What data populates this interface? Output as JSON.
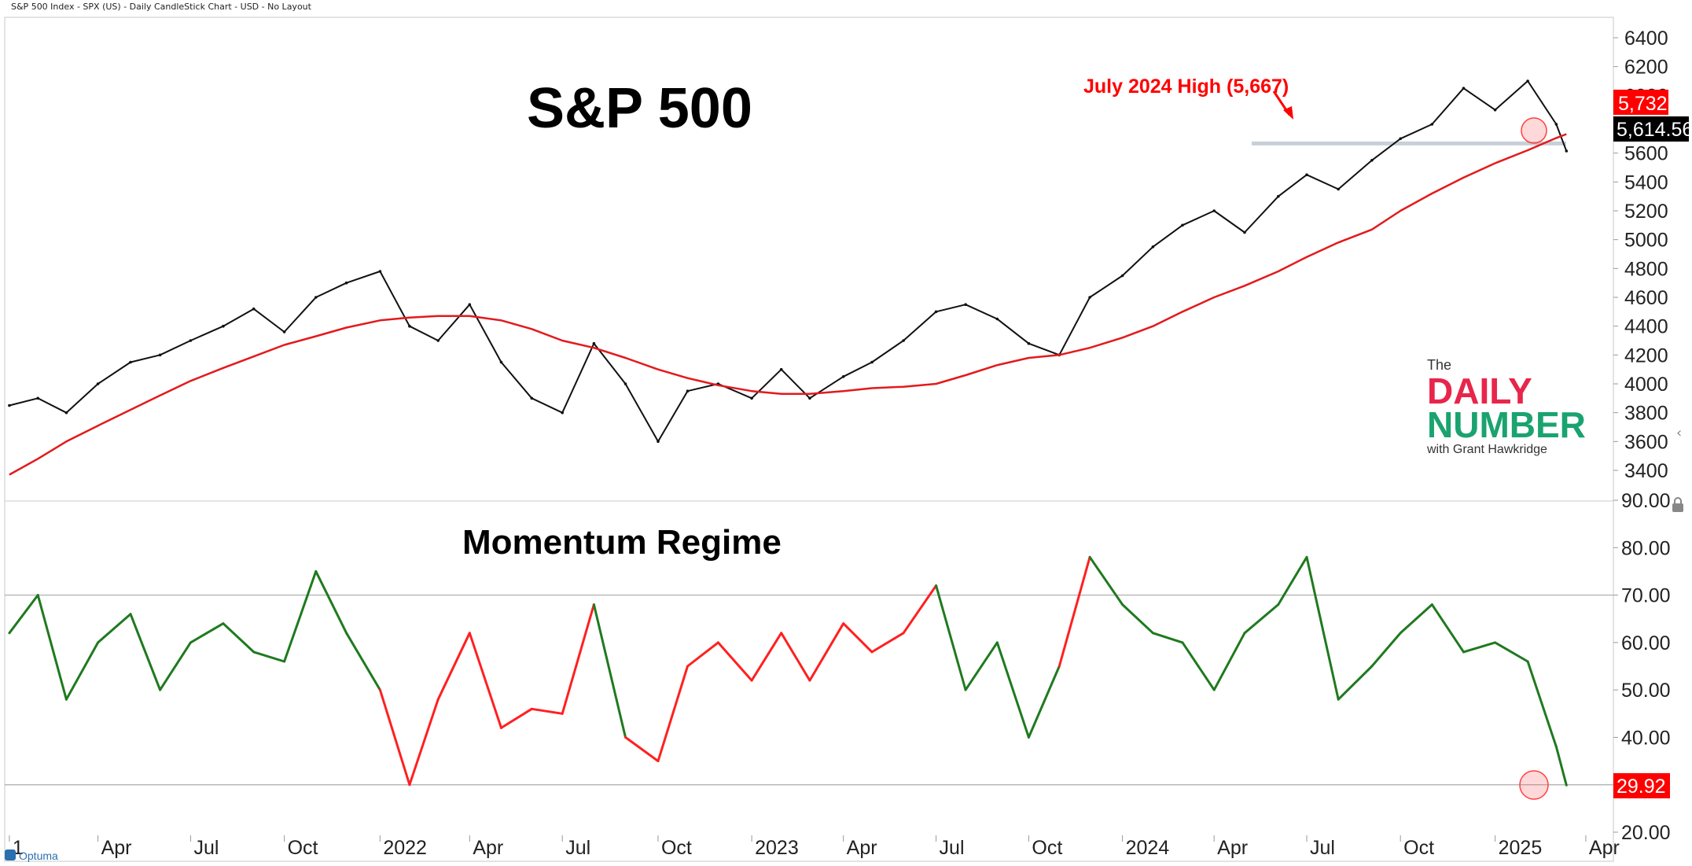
{
  "header": {
    "text": "S&P 500 Index - SPX (US) - Daily CandleStick Chart - USD - No Layout"
  },
  "watermark": {
    "the": "The",
    "daily": "DAILY",
    "number": "NUMBER",
    "with": "with Grant Hawkridge",
    "optuma": "Optuma"
  },
  "colors": {
    "price": "#111111",
    "ma": "#e31a1c",
    "momentum_up": "#1f7a1f",
    "momentum_down": "#ff2020",
    "annotation": "#ff0000",
    "brand_red": "#e8254a",
    "brand_green": "#1aa36f"
  },
  "chart_data": [
    {
      "type": "line",
      "title": "S&P 500",
      "xlabel": "",
      "ylabel": "",
      "ylim": [
        3300,
        6500
      ],
      "yticks": [
        3400,
        3600,
        3800,
        4000,
        4200,
        4400,
        4600,
        4800,
        5000,
        5200,
        5400,
        5600,
        5800,
        6000,
        6200,
        6400
      ],
      "x_tick_labels": [
        "1",
        "Apr",
        "Jul",
        "Oct",
        "2022",
        "Apr",
        "Jul",
        "Oct",
        "2023",
        "Apr",
        "Jul",
        "Oct",
        "2024",
        "Apr",
        "Jul",
        "Oct",
        "2025",
        "Apr"
      ],
      "x": [
        "2021-01-04",
        "2021-02-01",
        "2021-03-01",
        "2021-04-01",
        "2021-05-03",
        "2021-06-01",
        "2021-07-01",
        "2021-08-02",
        "2021-09-01",
        "2021-10-01",
        "2021-11-01",
        "2021-12-01",
        "2022-01-03",
        "2022-02-01",
        "2022-03-01",
        "2022-04-01",
        "2022-05-02",
        "2022-06-01",
        "2022-07-01",
        "2022-08-01",
        "2022-09-01",
        "2022-10-03",
        "2022-11-01",
        "2022-12-01",
        "2023-01-03",
        "2023-02-01",
        "2023-03-01",
        "2023-04-03",
        "2023-05-01",
        "2023-06-01",
        "2023-07-03",
        "2023-08-01",
        "2023-09-01",
        "2023-10-02",
        "2023-11-01",
        "2023-12-01",
        "2024-01-02",
        "2024-02-01",
        "2024-03-01",
        "2024-04-01",
        "2024-05-01",
        "2024-06-03",
        "2024-07-01",
        "2024-08-01",
        "2024-09-03",
        "2024-10-01",
        "2024-11-01",
        "2024-12-02",
        "2025-01-02",
        "2025-02-03",
        "2025-03-03",
        "2025-03-13"
      ],
      "series": [
        {
          "values": [
            3850,
            3900,
            3800,
            4000,
            4150,
            4200,
            4300,
            4400,
            4520,
            4360,
            4600,
            4700,
            4780,
            4400,
            4300,
            4550,
            4150,
            3900,
            3800,
            4280,
            4000,
            3600,
            3950,
            4000,
            3900,
            4100,
            3900,
            4050,
            4150,
            4300,
            4500,
            4550,
            4450,
            4280,
            4200,
            4600,
            4750,
            4950,
            5100,
            5200,
            5050,
            5300,
            5450,
            5350,
            5550,
            5700,
            5800,
            6050,
            5900,
            6100,
            5800,
            5614.56
          ]
        },
        {
          "values": [
            3370,
            3480,
            3600,
            3710,
            3820,
            3920,
            4020,
            4110,
            4190,
            4270,
            4330,
            4390,
            4440,
            4460,
            4470,
            4470,
            4440,
            4380,
            4300,
            4250,
            4180,
            4100,
            4040,
            3990,
            3950,
            3930,
            3930,
            3950,
            3970,
            3980,
            4000,
            4060,
            4130,
            4180,
            4200,
            4250,
            4320,
            4400,
            4500,
            4600,
            4680,
            4780,
            4880,
            4980,
            5070,
            5200,
            5320,
            5430,
            5530,
            5620,
            5705,
            5732
          ]
        }
      ],
      "current_price": "5,614.56",
      "ma_value": "5,732",
      "annotation": "July 2024 High (5,667)",
      "reference_level": 5667
    },
    {
      "type": "line",
      "title": "Momentum Regime",
      "xlabel": "",
      "ylabel": "",
      "ylim": [
        20,
        90
      ],
      "yticks": [
        "20.00",
        "30.00",
        "40.00",
        "50.00",
        "60.00",
        "70.00",
        "80.00",
        "90.00"
      ],
      "reference_lines": [
        70,
        30
      ],
      "x": [
        "2021-01-04",
        "2021-02-01",
        "2021-03-01",
        "2021-04-01",
        "2021-05-03",
        "2021-06-01",
        "2021-07-01",
        "2021-08-02",
        "2021-09-01",
        "2021-10-01",
        "2021-11-01",
        "2021-12-01",
        "2022-01-03",
        "2022-02-01",
        "2022-03-01",
        "2022-04-01",
        "2022-05-02",
        "2022-06-01",
        "2022-07-01",
        "2022-08-01",
        "2022-09-01",
        "2022-10-03",
        "2022-11-01",
        "2022-12-01",
        "2023-01-03",
        "2023-02-01",
        "2023-03-01",
        "2023-04-03",
        "2023-05-01",
        "2023-06-01",
        "2023-07-03",
        "2023-08-01",
        "2023-09-01",
        "2023-10-02",
        "2023-11-01",
        "2023-12-01",
        "2024-01-02",
        "2024-02-01",
        "2024-03-01",
        "2024-04-01",
        "2024-05-01",
        "2024-06-03",
        "2024-07-01",
        "2024-08-01",
        "2024-09-03",
        "2024-10-01",
        "2024-11-01",
        "2024-12-02",
        "2025-01-02",
        "2025-02-03",
        "2025-03-03",
        "2025-03-13"
      ],
      "series": [
        {
          "values": [
            62,
            70,
            48,
            60,
            66,
            50,
            60,
            64,
            58,
            56,
            75,
            62,
            50,
            30,
            48,
            62,
            42,
            46,
            45,
            68,
            40,
            35,
            55,
            60,
            52,
            62,
            52,
            64,
            58,
            62,
            72,
            50,
            60,
            40,
            55,
            78,
            68,
            62,
            60,
            50,
            62,
            68,
            78,
            48,
            55,
            62,
            68,
            58,
            60,
            56,
            38,
            29.92
          ],
          "regime": [
            "up",
            "up",
            "up",
            "up",
            "up",
            "up",
            "up",
            "up",
            "up",
            "up",
            "up",
            "up",
            "up",
            "down",
            "down",
            "down",
            "down",
            "down",
            "down",
            "down",
            "up",
            "down",
            "down",
            "down",
            "down",
            "down",
            "down",
            "down",
            "down",
            "down",
            "down",
            "up",
            "up",
            "up",
            "up",
            "down",
            "up",
            "up",
            "up",
            "up",
            "up",
            "up",
            "up",
            "up",
            "up",
            "up",
            "up",
            "up",
            "up",
            "up",
            "up",
            "up"
          ]
        }
      ],
      "current_value": "29.92"
    }
  ]
}
